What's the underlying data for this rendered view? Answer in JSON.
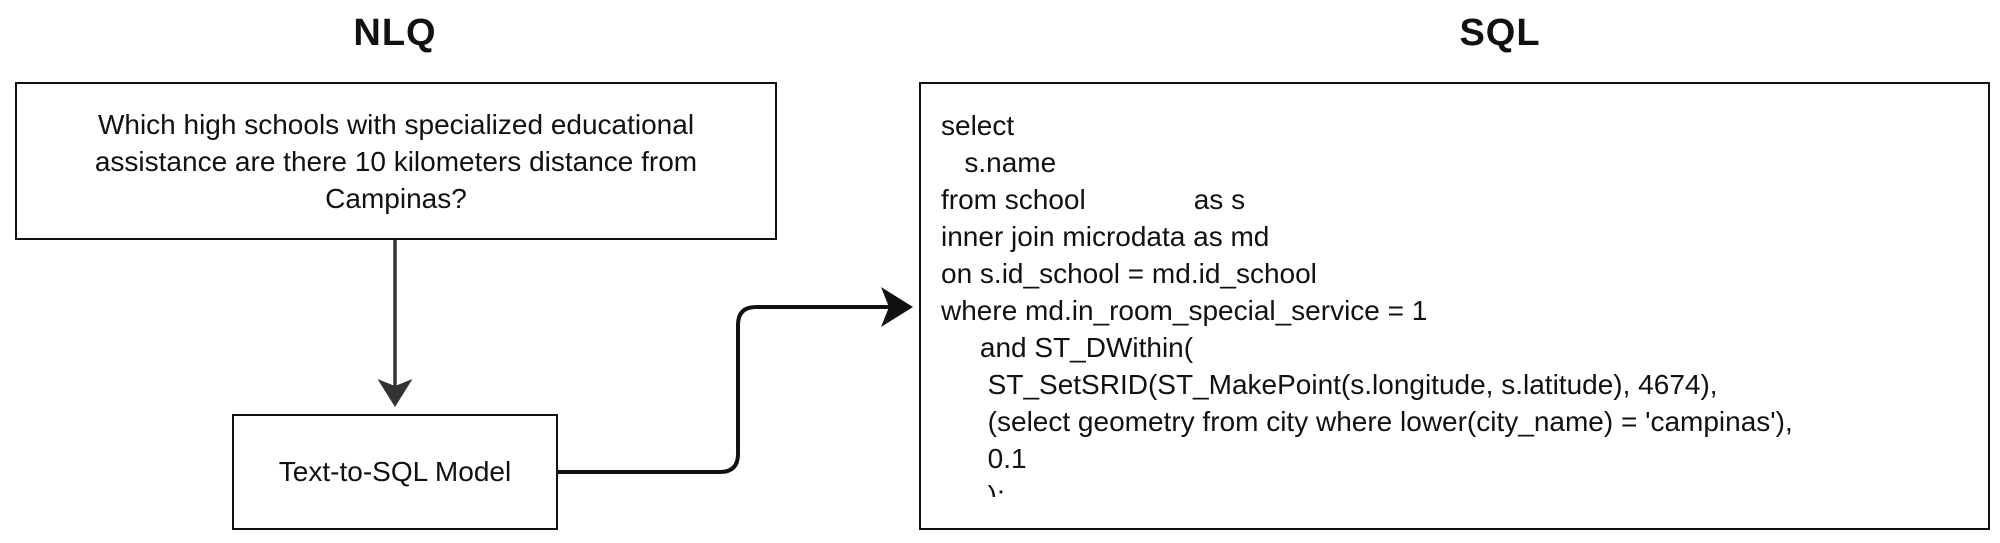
{
  "headings": {
    "nlq": "NLQ",
    "sql": "SQL"
  },
  "question": "Which high schools with specialized educational assistance are there 10 kilometers distance from Campinas?",
  "model_label": "Text-to-SQL Model",
  "sql": {
    "lines": [
      {
        "indent": "",
        "text": "select"
      },
      {
        "indent": "   ",
        "text": "s.name"
      },
      {
        "indent": "",
        "text": "from school",
        "after_tab": "as s"
      },
      {
        "indent": "",
        "text": "inner join microdata as md"
      },
      {
        "indent": "",
        "text": "on s.id_school = md.id_school"
      },
      {
        "indent": "",
        "text": "where md.in_room_special_service = 1"
      },
      {
        "indent": "     ",
        "text": "and ST_DWithin("
      },
      {
        "indent": "      ",
        "text": "ST_SetSRID(ST_MakePoint(s.longitude, s.latitude), 4674),"
      },
      {
        "indent": "      ",
        "text": "(select geometry from city where lower(city_name) = 'campinas'),"
      },
      {
        "indent": "      ",
        "text": "0.1"
      },
      {
        "indent": "      ",
        "text": ");"
      }
    ]
  },
  "colors": {
    "stroke": "#111111",
    "arrow_down": "#333333"
  }
}
